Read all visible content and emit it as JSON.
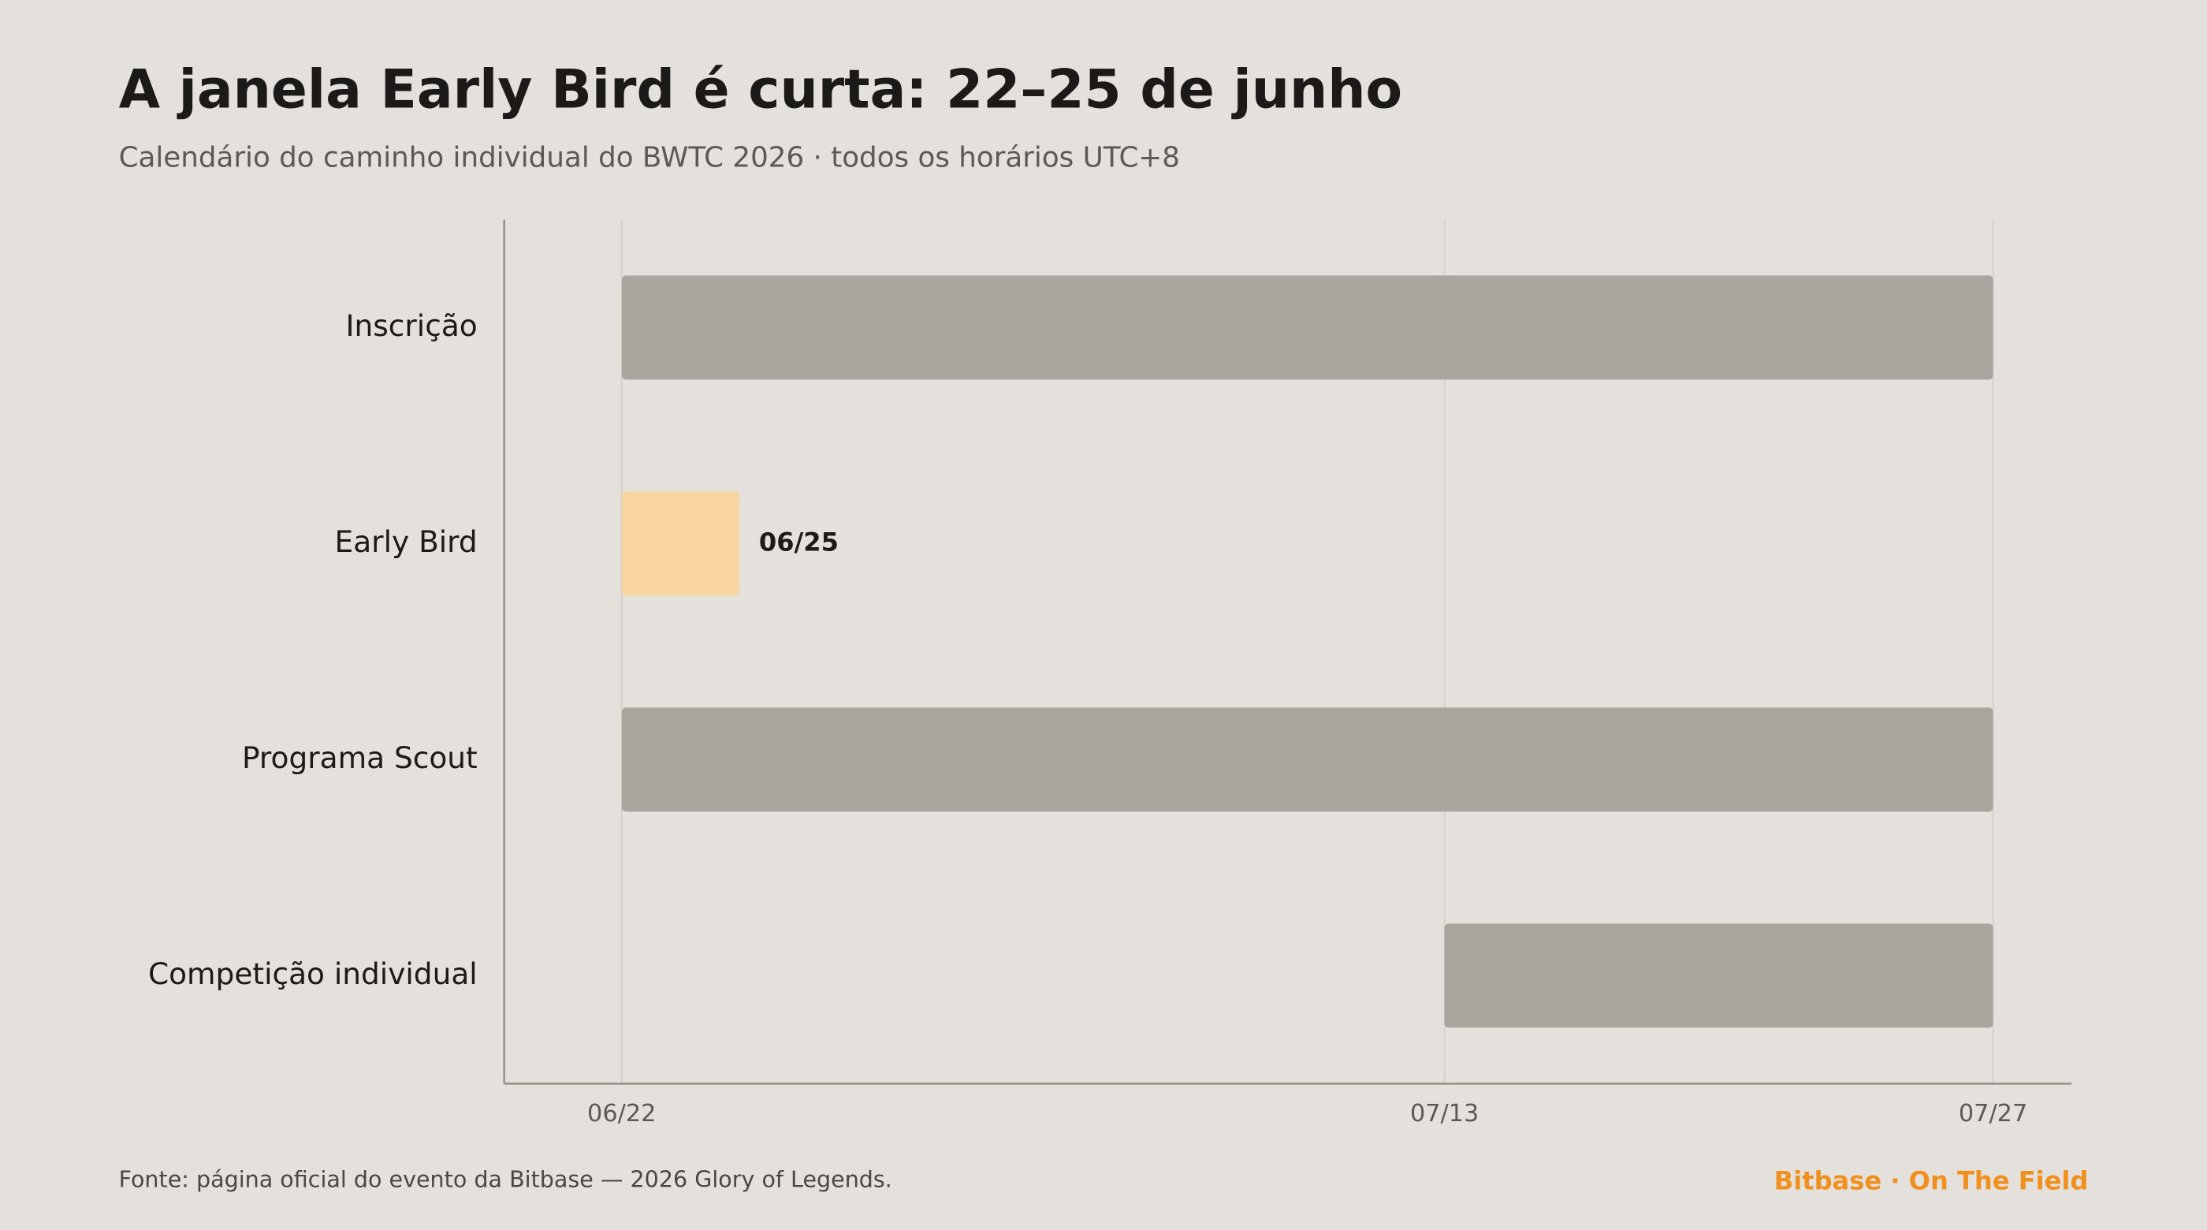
{
  "chart_data": {
    "type": "gantt",
    "title": "A janela Early Bird é curta: 22–25 de junho",
    "subtitle": "Calendário do caminho individual do BWTC 2026 · todos os horários UTC+8",
    "categories": [
      "Inscrição",
      "Early Bird",
      "Programa Scout",
      "Competição individual"
    ],
    "start": [
      "06/22",
      "06/22",
      "06/22",
      "07/13"
    ],
    "end": [
      "07/27",
      "06/25",
      "07/27",
      "07/27"
    ],
    "value_labels": [
      null,
      "06/25",
      null,
      null
    ],
    "colors": [
      "#aaa59f",
      "#f8d49e",
      "#aaa59f",
      "#aaa59f"
    ],
    "xlim": [
      "06/19",
      "07/29"
    ],
    "xticks": [
      "06/22",
      "07/13",
      "07/27"
    ],
    "grid": true,
    "source": "Fonte: página oficial do evento da Bitbase — 2026 Glory of Legends.",
    "brand": "Bitbase · On The Field"
  }
}
